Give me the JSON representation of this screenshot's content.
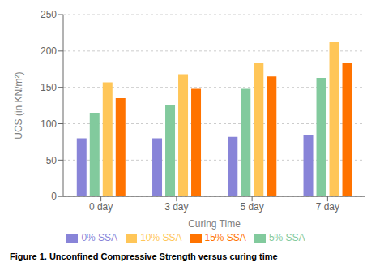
{
  "chart_data": {
    "type": "bar",
    "caption": "Figure 1. Unconfined Compressive Strength versus curing time",
    "xlabel": "Curing Time",
    "ylabel": "UCS (in KN/m²)",
    "categories": [
      "0 day",
      "3 day",
      "5 day",
      "7 day"
    ],
    "series": [
      {
        "name": "0% SSA",
        "color": "#8884d8",
        "values": [
          80,
          80,
          82,
          84
        ]
      },
      {
        "name": "5% SSA",
        "color": "#82ca9d",
        "values": [
          115,
          125,
          148,
          163
        ]
      },
      {
        "name": "10% SSA",
        "color": "#ffc658",
        "values": [
          157,
          168,
          183,
          212
        ]
      },
      {
        "name": "15% SSA",
        "color": "#ff7300",
        "values": [
          135,
          148,
          165,
          183
        ]
      }
    ],
    "ylim": [
      0,
      250
    ],
    "yticks": [
      0,
      50,
      100,
      150,
      200,
      250
    ],
    "grid": true,
    "legend": "bottom"
  }
}
